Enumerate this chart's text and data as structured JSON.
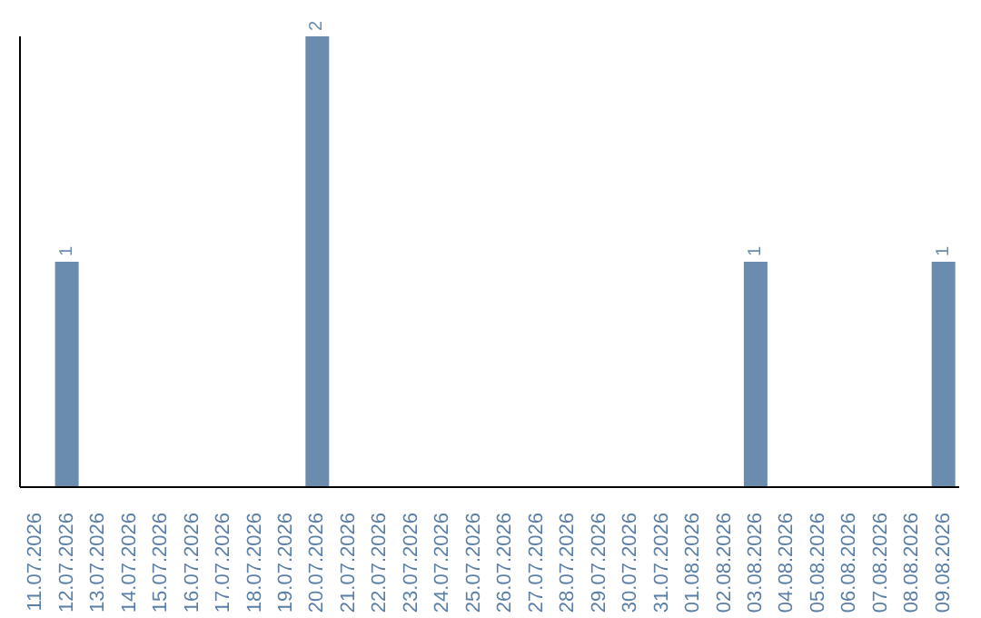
{
  "chart_data": {
    "type": "bar",
    "categories": [
      "11.07.2026",
      "12.07.2026",
      "13.07.2026",
      "14.07.2026",
      "15.07.2026",
      "16.07.2026",
      "17.07.2026",
      "18.07.2026",
      "19.07.2026",
      "20.07.2026",
      "21.07.2026",
      "22.07.2026",
      "23.07.2026",
      "24.07.2026",
      "25.07.2026",
      "26.07.2026",
      "27.07.2026",
      "28.07.2026",
      "29.07.2026",
      "30.07.2026",
      "31.07.2026",
      "01.08.2026",
      "02.08.2026",
      "03.08.2026",
      "04.08.2026",
      "05.08.2026",
      "06.08.2026",
      "07.08.2026",
      "08.08.2026",
      "09.08.2026"
    ],
    "values": [
      0,
      1,
      0,
      0,
      0,
      0,
      0,
      0,
      0,
      2,
      0,
      0,
      0,
      0,
      0,
      0,
      0,
      0,
      0,
      0,
      0,
      0,
      0,
      1,
      0,
      0,
      0,
      0,
      0,
      1
    ],
    "value_labels": [
      null,
      "1",
      null,
      null,
      null,
      null,
      null,
      null,
      null,
      "2",
      null,
      null,
      null,
      null,
      null,
      null,
      null,
      null,
      null,
      null,
      null,
      null,
      null,
      "1",
      null,
      null,
      null,
      null,
      null,
      "1"
    ],
    "color": "#6a8caf"
  }
}
